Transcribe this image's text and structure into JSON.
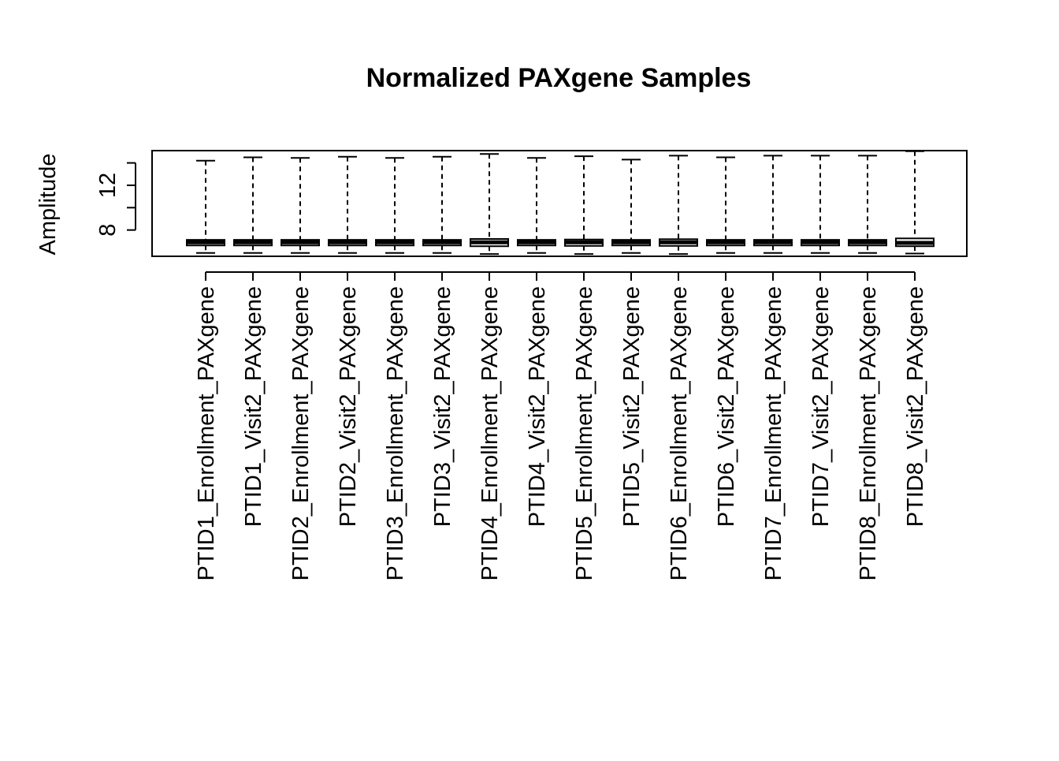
{
  "chart_data": {
    "type": "boxplot",
    "title": "Normalized PAXgene Samples",
    "xlabel": "",
    "ylabel": "Amplitude",
    "ylim": [
      5.65,
      15.1
    ],
    "yticks": [
      8,
      10,
      12,
      14
    ],
    "ytick_labels": [
      "8",
      "",
      "12",
      ""
    ],
    "grid": false,
    "legend": "none",
    "categories": [
      "PTID1_Enrollment_PAXgene",
      "PTID1_Visit2_PAXgene",
      "PTID2_Enrollment_PAXgene",
      "PTID2_Visit2_PAXgene",
      "PTID3_Enrollment_PAXgene",
      "PTID3_Visit2_PAXgene",
      "PTID4_Enrollment_PAXgene",
      "PTID4_Visit2_PAXgene",
      "PTID5_Enrollment_PAXgene",
      "PTID5_Visit2_PAXgene",
      "PTID6_Enrollment_PAXgene",
      "PTID6_Visit2_PAXgene",
      "PTID7_Enrollment_PAXgene",
      "PTID7_Visit2_PAXgene",
      "PTID8_Enrollment_PAXgene",
      "PTID8_Visit2_PAXgene"
    ],
    "boxes": [
      {
        "min": 5.95,
        "q1": 6.62,
        "median": 6.9,
        "q3": 7.12,
        "max": 14.2
      },
      {
        "min": 5.95,
        "q1": 6.62,
        "median": 6.9,
        "q3": 7.12,
        "max": 14.5
      },
      {
        "min": 5.95,
        "q1": 6.62,
        "median": 6.9,
        "q3": 7.12,
        "max": 14.45
      },
      {
        "min": 5.95,
        "q1": 6.62,
        "median": 6.9,
        "q3": 7.12,
        "max": 14.55
      },
      {
        "min": 5.95,
        "q1": 6.62,
        "median": 6.9,
        "q3": 7.12,
        "max": 14.45
      },
      {
        "min": 5.95,
        "q1": 6.62,
        "median": 6.9,
        "q3": 7.12,
        "max": 14.55
      },
      {
        "min": 5.85,
        "q1": 6.55,
        "median": 6.9,
        "q3": 7.2,
        "max": 14.8
      },
      {
        "min": 5.95,
        "q1": 6.62,
        "median": 6.9,
        "q3": 7.12,
        "max": 14.45
      },
      {
        "min": 5.85,
        "q1": 6.58,
        "median": 6.9,
        "q3": 7.15,
        "max": 14.6
      },
      {
        "min": 5.95,
        "q1": 6.62,
        "median": 6.9,
        "q3": 7.12,
        "max": 14.3
      },
      {
        "min": 5.85,
        "q1": 6.58,
        "median": 6.9,
        "q3": 7.18,
        "max": 14.65
      },
      {
        "min": 5.95,
        "q1": 6.62,
        "median": 6.9,
        "q3": 7.12,
        "max": 14.5
      },
      {
        "min": 5.95,
        "q1": 6.62,
        "median": 6.9,
        "q3": 7.12,
        "max": 14.65
      },
      {
        "min": 5.95,
        "q1": 6.62,
        "median": 6.9,
        "q3": 7.12,
        "max": 14.65
      },
      {
        "min": 5.95,
        "q1": 6.62,
        "median": 6.9,
        "q3": 7.12,
        "max": 14.65
      },
      {
        "min": 5.9,
        "q1": 6.55,
        "median": 6.85,
        "q3": 7.25,
        "max": 15.05
      }
    ]
  }
}
